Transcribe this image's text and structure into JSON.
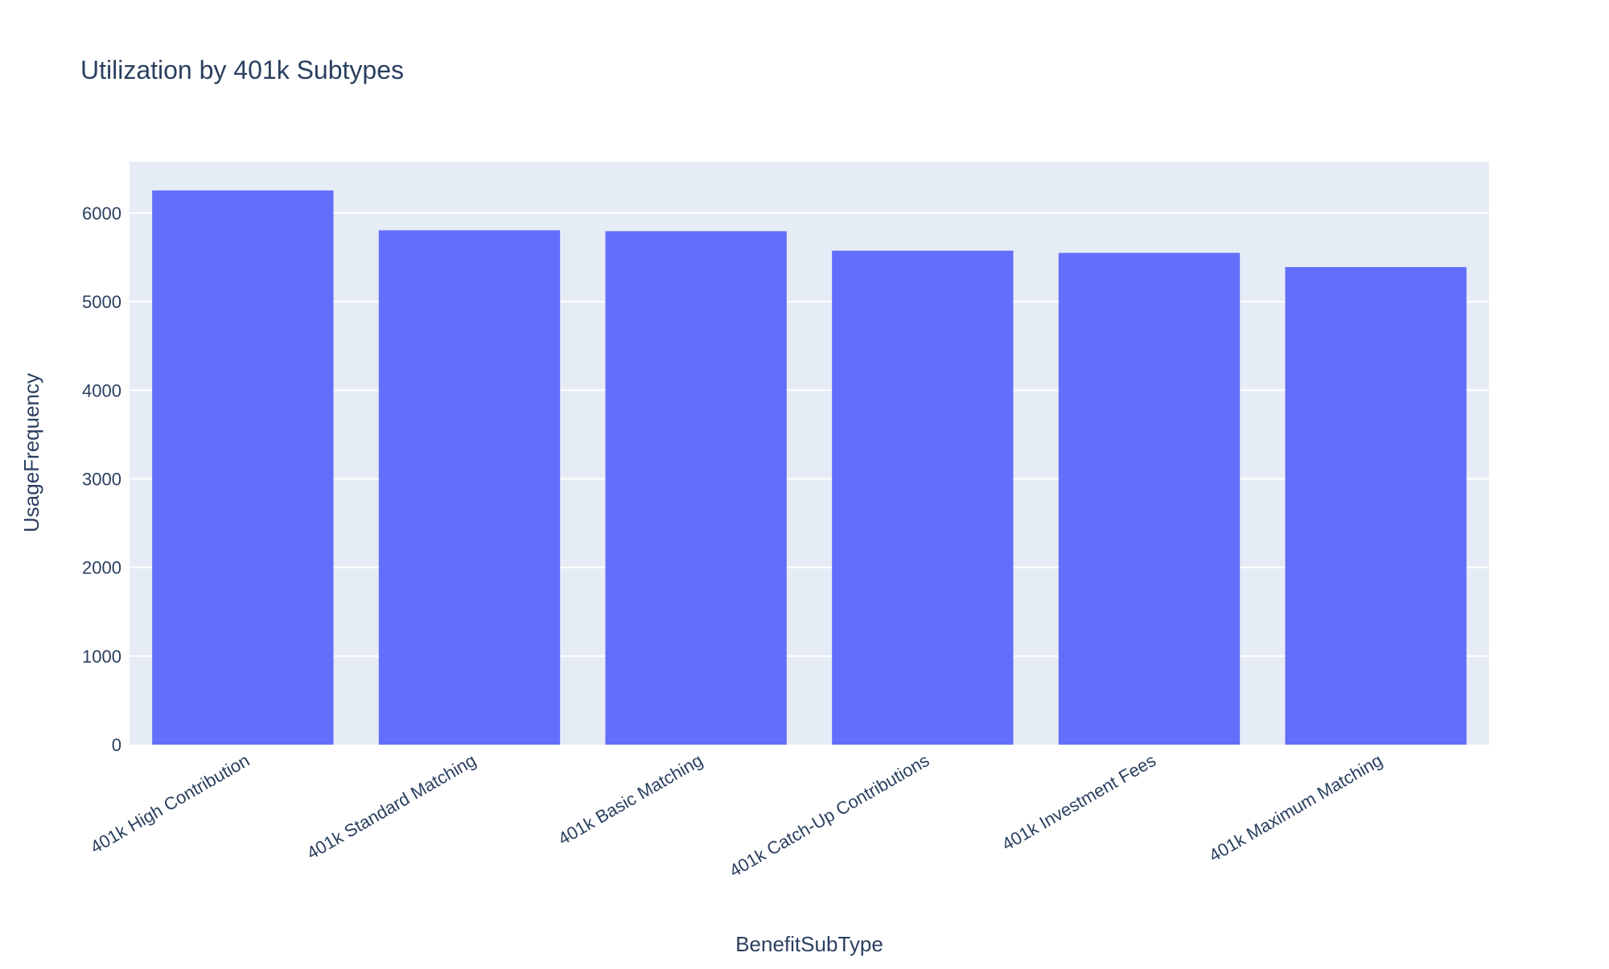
{
  "chart_data": {
    "type": "bar",
    "title": "Utilization by 401k Subtypes",
    "xlabel": "BenefitSubType",
    "ylabel": "UsageFrequency",
    "categories": [
      "401k High Contribution",
      "401k Standard Matching",
      "401k Basic Matching",
      "401k Catch-Up Contributions",
      "401k Investment Fees",
      "401k Maximum Matching"
    ],
    "values": [
      6255,
      5805,
      5795,
      5575,
      5550,
      5390
    ],
    "ylim": [
      0,
      6580
    ],
    "yticks": [
      0,
      1000,
      2000,
      3000,
      4000,
      5000,
      6000
    ],
    "grid": true,
    "legend": "none",
    "colors": {
      "bar": "#636efa",
      "plot_background": "#e5ecf6",
      "gridline": "#ffffff",
      "text": "#2a3f5f"
    }
  }
}
